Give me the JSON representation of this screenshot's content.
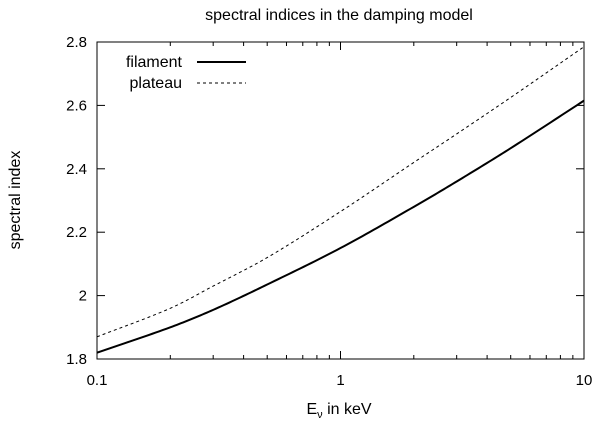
{
  "chart_data": {
    "type": "line",
    "title": "spectral indices in the damping model",
    "xlabel_main": "E",
    "xlabel_sub": "ν",
    "xlabel_rest": " in keV",
    "ylabel": "spectral index",
    "x_scale": "log",
    "xlim": [
      0.1,
      10
    ],
    "ylim": [
      1.8,
      2.8
    ],
    "x_ticks": [
      0.1,
      1,
      10
    ],
    "x_tick_labels": [
      "0.1",
      "1",
      "10"
    ],
    "y_ticks": [
      1.8,
      2.0,
      2.2,
      2.4,
      2.6,
      2.8
    ],
    "y_tick_labels": [
      "1.8",
      "2",
      "2.2",
      "2.4",
      "2.6",
      "2.8"
    ],
    "grid": false,
    "legend_position": "top-left",
    "series": [
      {
        "name": "filament",
        "style": "solid",
        "x": [
          0.1,
          0.2,
          0.3,
          0.5,
          1,
          2,
          3,
          5,
          10
        ],
        "y": [
          1.82,
          1.9,
          1.955,
          2.035,
          2.15,
          2.28,
          2.36,
          2.465,
          2.615
        ]
      },
      {
        "name": "plateau",
        "style": "dashed",
        "x": [
          0.1,
          0.2,
          0.3,
          0.5,
          1,
          2,
          3,
          5,
          10
        ],
        "y": [
          1.87,
          1.96,
          2.03,
          2.12,
          2.265,
          2.42,
          2.51,
          2.625,
          2.785
        ]
      }
    ]
  }
}
